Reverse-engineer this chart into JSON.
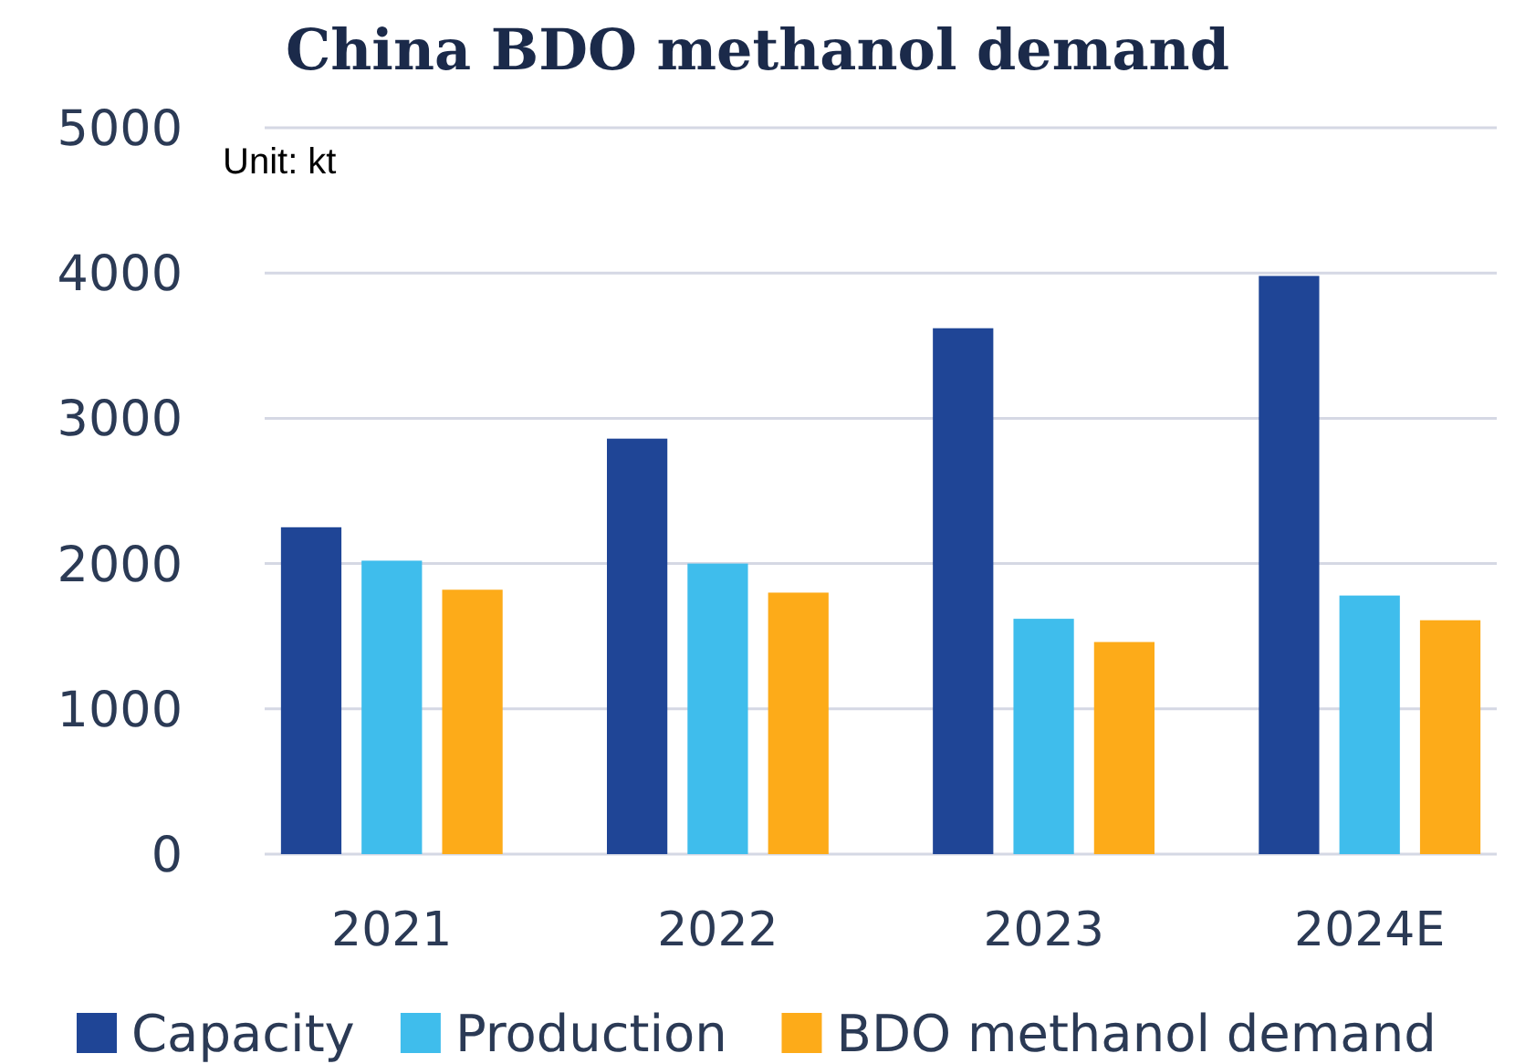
{
  "chart_data": {
    "type": "bar",
    "title": "China BDO methanol demand",
    "annotations": [
      "Unit: kt"
    ],
    "categories": [
      "2021",
      "2022",
      "2023",
      "2024E"
    ],
    "series": [
      {
        "name": "Capacity",
        "color": "#1f4596",
        "values": [
          2250,
          2860,
          3620,
          3980
        ]
      },
      {
        "name": "Production",
        "color": "#3fbdec",
        "values": [
          2020,
          2000,
          1620,
          1780
        ]
      },
      {
        "name": "BDO methanol demand",
        "color": "#fdab19",
        "values": [
          1820,
          1800,
          1460,
          1610
        ]
      }
    ],
    "ylim": [
      0,
      5000
    ],
    "yticks": [
      0,
      1000,
      2000,
      3000,
      4000,
      5000
    ],
    "grid": "y",
    "legend": "bottom"
  }
}
